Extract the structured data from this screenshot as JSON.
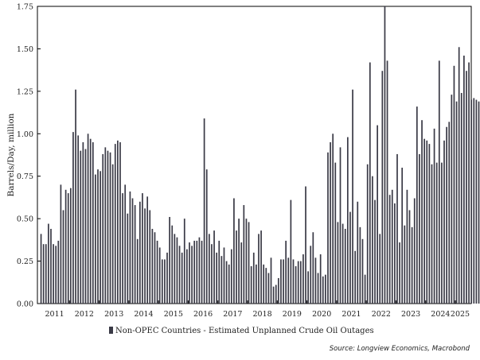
{
  "chart_data": {
    "type": "bar",
    "ylabel": "Barrels/Day, million",
    "ylim": [
      0,
      1.75
    ],
    "yticks": [
      "0.00",
      "0.25",
      "0.50",
      "0.75",
      "1.00",
      "1.25",
      "1.50",
      "1.75"
    ],
    "xticks": [
      "2011",
      "2012",
      "2013",
      "2014",
      "2015",
      "2016",
      "2017",
      "2018",
      "2019",
      "2020",
      "2021",
      "2022",
      "2023",
      "2024",
      "2025"
    ],
    "start_period": "2011-01",
    "bar_color": "#3a3a46",
    "grid": false,
    "legend_position": "bottom",
    "series": [
      {
        "name": "Non-OPEC Countries - Estimated Unplanned Crude Oil Outages",
        "values": [
          0.41,
          0.35,
          0.35,
          0.47,
          0.44,
          0.35,
          0.34,
          0.37,
          0.7,
          0.55,
          0.67,
          0.65,
          0.68,
          1.01,
          1.26,
          0.99,
          0.9,
          0.95,
          0.91,
          1.0,
          0.97,
          0.95,
          0.76,
          0.79,
          0.78,
          0.88,
          0.92,
          0.9,
          0.89,
          0.82,
          0.94,
          0.96,
          0.95,
          0.65,
          0.7,
          0.53,
          0.66,
          0.62,
          0.58,
          0.38,
          0.6,
          0.65,
          0.56,
          0.63,
          0.55,
          0.44,
          0.42,
          0.37,
          0.33,
          0.26,
          0.26,
          0.3,
          0.51,
          0.46,
          0.41,
          0.39,
          0.34,
          0.3,
          0.5,
          0.32,
          0.36,
          0.34,
          0.37,
          0.37,
          0.39,
          0.37,
          1.09,
          0.79,
          0.41,
          0.35,
          0.43,
          0.3,
          0.37,
          0.28,
          0.33,
          0.25,
          0.23,
          0.32,
          0.62,
          0.43,
          0.5,
          0.36,
          0.58,
          0.5,
          0.48,
          0.22,
          0.3,
          0.23,
          0.41,
          0.43,
          0.23,
          0.21,
          0.18,
          0.27,
          0.1,
          0.11,
          0.15,
          0.26,
          0.26,
          0.37,
          0.27,
          0.61,
          0.26,
          0.22,
          0.25,
          0.25,
          0.29,
          0.69,
          0.19,
          0.34,
          0.42,
          0.27,
          0.18,
          0.29,
          0.16,
          0.17,
          0.89,
          0.95,
          1.0,
          0.83,
          0.48,
          0.92,
          0.47,
          0.44,
          0.98,
          0.54,
          1.26,
          0.31,
          0.6,
          0.45,
          0.38,
          0.17,
          0.82,
          1.42,
          0.75,
          0.61,
          1.05,
          0.41,
          1.37,
          1.75,
          1.43,
          0.64,
          0.67,
          0.59,
          0.88,
          0.36,
          0.8,
          0.46,
          0.67,
          0.55,
          0.45,
          0.62,
          1.16,
          0.88,
          1.08,
          0.97,
          0.96,
          0.94,
          0.82,
          1.03,
          0.83,
          1.43,
          0.83,
          0.96,
          1.04,
          1.07,
          1.23,
          1.4,
          1.19,
          1.51,
          1.24,
          1.46,
          1.37,
          1.42,
          1.2,
          1.21,
          1.2,
          1.19
        ]
      }
    ]
  },
  "source": "Source: Longview Economics, Macrobond"
}
